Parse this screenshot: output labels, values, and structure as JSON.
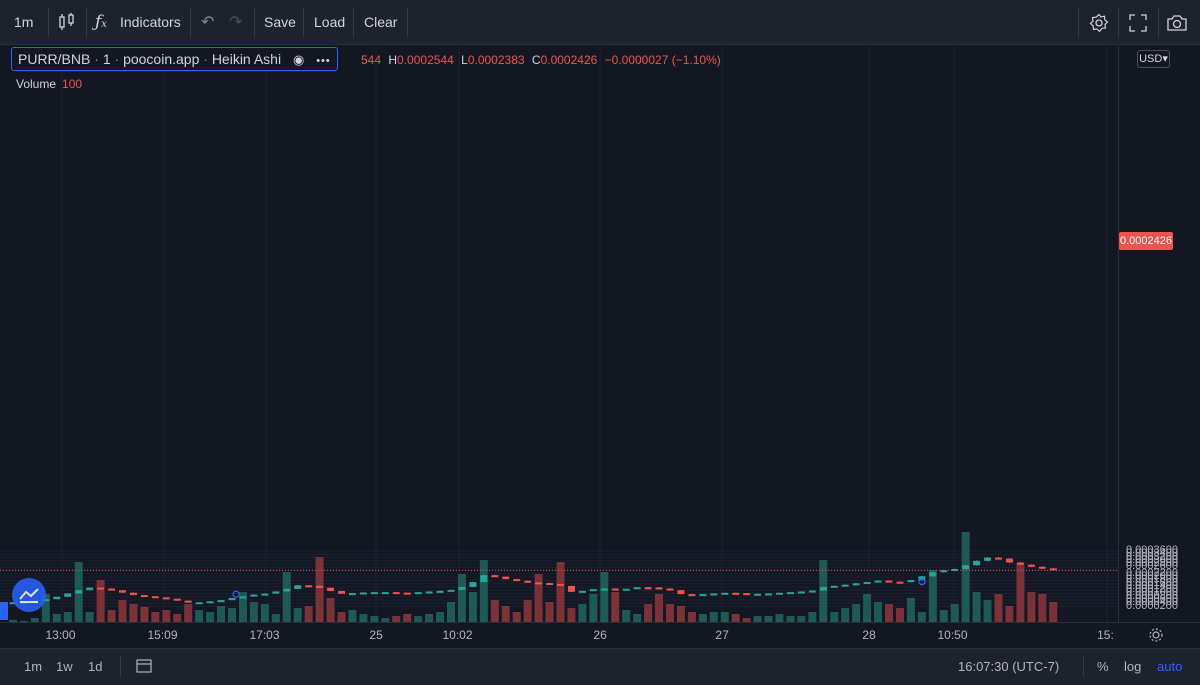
{
  "toolbar": {
    "interval": "1m",
    "indicators_label": "Indicators",
    "save_label": "Save",
    "load_label": "Load",
    "clear_label": "Clear"
  },
  "legend": {
    "symbol": "PURR/BNB",
    "interval": "1",
    "source": "poocoin.app",
    "style": "Heikin Ashi",
    "open_partial": "544",
    "high": "0.0002544",
    "low": "0.0002383",
    "close": "0.0002426",
    "change": "−0.0000027 (−1.10%)",
    "volume_label": "Volume",
    "volume_value": "100"
  },
  "price_scale": {
    "currency": "USD",
    "current_price": "0.0002426",
    "labels": [
      "0.0003600",
      "0.0003400",
      "0.0003200",
      "0.0003000",
      "0.0002800",
      "0.0002600",
      "0.0002200",
      "0.0002000",
      "0.0001800",
      "0.0001600",
      "0.0001400",
      "0.0001200",
      "0.0001000",
      "0.0000800",
      "0.0000600",
      "0.0000400",
      "0.0000200"
    ]
  },
  "time_axis": {
    "labels": [
      "13:00",
      "15:09",
      "17:03",
      "25",
      "10:02",
      "26",
      "27",
      "28",
      "10:50",
      "15:"
    ]
  },
  "bottom_bar": {
    "ranges": [
      "1m",
      "1w",
      "1d"
    ],
    "clock": "16:07:30 (UTC-7)",
    "percent": "%",
    "log": "log",
    "auto": "auto"
  },
  "colors": {
    "up": "#26a69a",
    "down": "#ef5350",
    "up_volume": "#1e5a55",
    "down_volume": "#7a3238",
    "background": "#131722",
    "accent": "#2962ff"
  },
  "chart_data": {
    "type": "candlestick",
    "title": "PURR/BNB · 1 · poocoin.app · Heikin Ashi",
    "y_unit": "USD",
    "ylim": [
      1.2e-05,
      0.00036
    ],
    "x_ticks": [
      "13:00",
      "15:09",
      "17:03",
      "25",
      "10:02",
      "26",
      "27",
      "28",
      "10:50",
      "15:"
    ],
    "price_path": [
      [
        0,
        4.6e-05
      ],
      [
        1,
        4.7e-05
      ],
      [
        2,
        5.6e-05
      ],
      [
        3,
        6.5e-05
      ],
      [
        4,
        8e-05
      ],
      [
        5,
        0.0001
      ],
      [
        6,
        0.00012
      ],
      [
        7,
        0.000136
      ],
      [
        8,
        0.00013
      ],
      [
        9,
        0.00012
      ],
      [
        10,
        0.000105
      ],
      [
        11,
        9e-05
      ],
      [
        12,
        8.3e-05
      ],
      [
        13,
        7.6e-05
      ],
      [
        14,
        6.8e-05
      ],
      [
        15,
        5.6e-05
      ],
      [
        16,
        4.5e-05
      ],
      [
        17,
        4.6e-05
      ],
      [
        18,
        5.2e-05
      ],
      [
        19,
        5.9e-05
      ],
      [
        20,
        7.2e-05
      ],
      [
        21,
        8.2e-05
      ],
      [
        22,
        9.3e-05
      ],
      [
        23,
        9.9e-05
      ],
      [
        24,
        0.000112
      ],
      [
        25,
        0.000128
      ],
      [
        26,
        0.00015
      ],
      [
        27,
        0.000147
      ],
      [
        28,
        0.000135
      ],
      [
        29,
        0.000115
      ],
      [
        30,
        9.8e-05
      ],
      [
        31,
        0.000102
      ],
      [
        32,
        0.000106
      ],
      [
        33,
        0.000108
      ],
      [
        34,
        0.000108
      ],
      [
        35,
        0.000105
      ],
      [
        36,
        0.000104
      ],
      [
        37,
        0.000108
      ],
      [
        38,
        0.000112
      ],
      [
        39,
        0.000116
      ],
      [
        40,
        0.000122
      ],
      [
        41,
        0.00014
      ],
      [
        42,
        0.00017
      ],
      [
        43,
        0.000212
      ],
      [
        44,
        0.000203
      ],
      [
        45,
        0.000188
      ],
      [
        46,
        0.000178
      ],
      [
        47,
        0.000168
      ],
      [
        48,
        0.000164
      ],
      [
        49,
        0.000158
      ],
      [
        50,
        0.000146
      ],
      [
        51,
        0.00011
      ],
      [
        52,
        0.000116
      ],
      [
        53,
        0.000126
      ],
      [
        54,
        0.00013
      ],
      [
        55,
        0.000129
      ],
      [
        56,
        0.000129
      ],
      [
        57,
        0.000138
      ],
      [
        58,
        0.000137
      ],
      [
        59,
        0.00013
      ],
      [
        60,
        0.00012
      ],
      [
        61,
        9.6e-05
      ],
      [
        62,
        9.1e-05
      ],
      [
        63,
        9.6e-05
      ],
      [
        64,
        0.0001
      ],
      [
        65,
        0.000104
      ],
      [
        66,
        0.000102
      ],
      [
        67,
        9.5e-05
      ],
      [
        68,
        9.8e-05
      ],
      [
        69,
        0.0001
      ],
      [
        70,
        0.000104
      ],
      [
        71,
        0.000108
      ],
      [
        72,
        0.000112
      ],
      [
        73,
        0.000118
      ],
      [
        74,
        0.00014
      ],
      [
        75,
        0.000147
      ],
      [
        76,
        0.000154
      ],
      [
        77,
        0.000162
      ],
      [
        78,
        0.00017
      ],
      [
        79,
        0.000179
      ],
      [
        80,
        0.000172
      ],
      [
        81,
        0.00017
      ],
      [
        82,
        0.000182
      ],
      [
        83,
        0.000205
      ],
      [
        84,
        0.00023
      ],
      [
        85,
        0.000243
      ],
      [
        86,
        0.00025
      ],
      [
        87,
        0.000273
      ],
      [
        88,
        0.0003
      ],
      [
        89,
        0.00032
      ],
      [
        90,
        0.000314
      ],
      [
        91,
        0.00029
      ],
      [
        92,
        0.000276
      ],
      [
        93,
        0.000264
      ],
      [
        94,
        0.000254
      ],
      [
        95,
        0.0002426
      ]
    ],
    "volume_path": [
      [
        0,
        2
      ],
      [
        1,
        1
      ],
      [
        2,
        4
      ],
      [
        3,
        28
      ],
      [
        4,
        8
      ],
      [
        5,
        10
      ],
      [
        6,
        60
      ],
      [
        7,
        10
      ],
      [
        8,
        42
      ],
      [
        9,
        12
      ],
      [
        10,
        22
      ],
      [
        11,
        18
      ],
      [
        12,
        15
      ],
      [
        13,
        10
      ],
      [
        14,
        12
      ],
      [
        15,
        8
      ],
      [
        16,
        18
      ],
      [
        17,
        12
      ],
      [
        18,
        10
      ],
      [
        19,
        16
      ],
      [
        20,
        14
      ],
      [
        21,
        30
      ],
      [
        22,
        20
      ],
      [
        23,
        18
      ],
      [
        24,
        8
      ],
      [
        25,
        50
      ],
      [
        26,
        14
      ],
      [
        27,
        16
      ],
      [
        28,
        65
      ],
      [
        29,
        24
      ],
      [
        30,
        10
      ],
      [
        31,
        12
      ],
      [
        32,
        8
      ],
      [
        33,
        6
      ],
      [
        34,
        4
      ],
      [
        35,
        6
      ],
      [
        36,
        8
      ],
      [
        37,
        6
      ],
      [
        38,
        8
      ],
      [
        39,
        10
      ],
      [
        40,
        20
      ],
      [
        41,
        48
      ],
      [
        42,
        30
      ],
      [
        43,
        62
      ],
      [
        44,
        22
      ],
      [
        45,
        16
      ],
      [
        46,
        10
      ],
      [
        47,
        22
      ],
      [
        48,
        48
      ],
      [
        49,
        20
      ],
      [
        50,
        60
      ],
      [
        51,
        14
      ],
      [
        52,
        18
      ],
      [
        53,
        28
      ],
      [
        54,
        50
      ],
      [
        55,
        30
      ],
      [
        56,
        12
      ],
      [
        57,
        8
      ],
      [
        58,
        18
      ],
      [
        59,
        28
      ],
      [
        60,
        18
      ],
      [
        61,
        16
      ],
      [
        62,
        10
      ],
      [
        63,
        8
      ],
      [
        64,
        10
      ],
      [
        65,
        10
      ],
      [
        66,
        8
      ],
      [
        67,
        4
      ],
      [
        68,
        6
      ],
      [
        69,
        6
      ],
      [
        70,
        8
      ],
      [
        71,
        6
      ],
      [
        72,
        6
      ],
      [
        73,
        10
      ],
      [
        74,
        62
      ],
      [
        75,
        10
      ],
      [
        76,
        14
      ],
      [
        77,
        18
      ],
      [
        78,
        28
      ],
      [
        79,
        20
      ],
      [
        80,
        18
      ],
      [
        81,
        14
      ],
      [
        82,
        24
      ],
      [
        83,
        10
      ],
      [
        84,
        52
      ],
      [
        85,
        12
      ],
      [
        86,
        18
      ],
      [
        87,
        90
      ],
      [
        88,
        30
      ],
      [
        89,
        22
      ],
      [
        90,
        28
      ],
      [
        91,
        16
      ],
      [
        92,
        58
      ],
      [
        93,
        30
      ],
      [
        94,
        28
      ],
      [
        95,
        20
      ]
    ],
    "current_price": 0.0002426,
    "volume_value": 100
  }
}
